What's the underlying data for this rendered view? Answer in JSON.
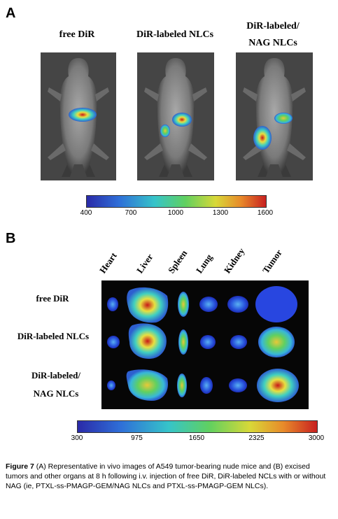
{
  "panel_a": {
    "letter": "A",
    "labels": [
      "free DiR",
      "DiR-labeled NLCs",
      "DiR-labeled/",
      "NAG NLCs"
    ],
    "colorbar_ticks": [
      "400",
      "700",
      "1000",
      "1300",
      "1600"
    ]
  },
  "panel_b": {
    "letter": "B",
    "organs": [
      "Heart",
      "Liver",
      "Spleen",
      "Lung",
      "Kidney",
      "Tumor"
    ],
    "rows": [
      "free DiR",
      "DiR-labeled NLCs",
      "DiR-labeled/",
      "NAG NLCs"
    ],
    "colorbar_ticks": [
      "300",
      "975",
      "1650",
      "2325",
      "3000"
    ]
  },
  "caption": {
    "lead": "Figure 7",
    "text": " (A) Representative in vivo images of A549 tumor-bearing nude mice and (B) excised tumors and other organs at 8 h following i.v. injection of free DiR, DiR-labeled NCLs with or without NAG (ie, PTXL-ss-PMAGP-GEM/NAG NLCs and PTXL-ss-PMAGP-GEM NLCs)."
  },
  "colors": {
    "scale": [
      "#2a2aa8",
      "#2f6fd8",
      "#36c4c9",
      "#60d060",
      "#d8d838",
      "#e88a2a",
      "#c82020"
    ]
  }
}
